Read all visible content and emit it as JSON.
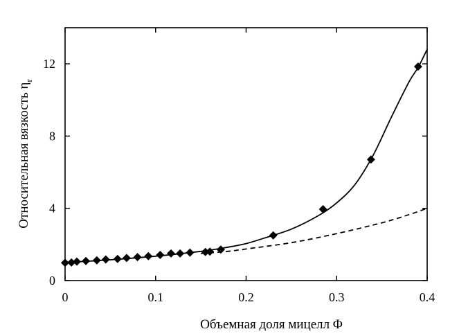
{
  "chart_data": {
    "type": "scatter",
    "xlabel": "Объемная доля мицелл Φ",
    "ylabel": "Относительная вязкость η",
    "ylabel_subscript": "r",
    "xlim": [
      0,
      0.4
    ],
    "ylim": [
      0,
      14
    ],
    "x_ticks": [
      {
        "value": 0,
        "label": "0"
      },
      {
        "value": 0.1,
        "label": "0.1"
      },
      {
        "value": 0.2,
        "label": "0.2"
      },
      {
        "value": 0.3,
        "label": "0.3"
      },
      {
        "value": 0.4,
        "label": "0.4"
      }
    ],
    "y_ticks": [
      {
        "value": 0,
        "label": "0"
      },
      {
        "value": 4,
        "label": "4"
      },
      {
        "value": 8,
        "label": "8"
      },
      {
        "value": 12,
        "label": "12"
      }
    ],
    "grid": false,
    "series": [
      {
        "type": "scatter",
        "marker": "diamond",
        "color": "#000000",
        "points": [
          [
            0.0,
            0.98
          ],
          [
            0.007,
            1.0
          ],
          [
            0.013,
            1.05
          ],
          [
            0.023,
            1.08
          ],
          [
            0.035,
            1.12
          ],
          [
            0.045,
            1.17
          ],
          [
            0.058,
            1.2
          ],
          [
            0.068,
            1.25
          ],
          [
            0.08,
            1.3
          ],
          [
            0.092,
            1.35
          ],
          [
            0.105,
            1.42
          ],
          [
            0.117,
            1.5
          ],
          [
            0.127,
            1.5
          ],
          [
            0.138,
            1.55
          ],
          [
            0.155,
            1.58
          ],
          [
            0.16,
            1.6
          ],
          [
            0.172,
            1.72
          ],
          [
            0.23,
            2.5
          ],
          [
            0.285,
            3.95
          ],
          [
            0.338,
            6.7
          ],
          [
            0.39,
            11.85
          ]
        ]
      },
      {
        "type": "line",
        "style": "solid",
        "color": "#000000",
        "points": [
          [
            0.0,
            1.0
          ],
          [
            0.05,
            1.15
          ],
          [
            0.1,
            1.35
          ],
          [
            0.15,
            1.62
          ],
          [
            0.18,
            1.85
          ],
          [
            0.2,
            2.05
          ],
          [
            0.22,
            2.35
          ],
          [
            0.25,
            2.85
          ],
          [
            0.28,
            3.6
          ],
          [
            0.3,
            4.3
          ],
          [
            0.32,
            5.3
          ],
          [
            0.34,
            6.9
          ],
          [
            0.36,
            9.0
          ],
          [
            0.38,
            11.0
          ],
          [
            0.39,
            11.8
          ],
          [
            0.4,
            12.8
          ]
        ]
      },
      {
        "type": "line",
        "style": "dashed",
        "color": "#000000",
        "points": [
          [
            0.15,
            1.5
          ],
          [
            0.18,
            1.62
          ],
          [
            0.2,
            1.75
          ],
          [
            0.25,
            2.1
          ],
          [
            0.3,
            2.6
          ],
          [
            0.35,
            3.2
          ],
          [
            0.38,
            3.65
          ],
          [
            0.4,
            4.0
          ]
        ]
      }
    ]
  }
}
